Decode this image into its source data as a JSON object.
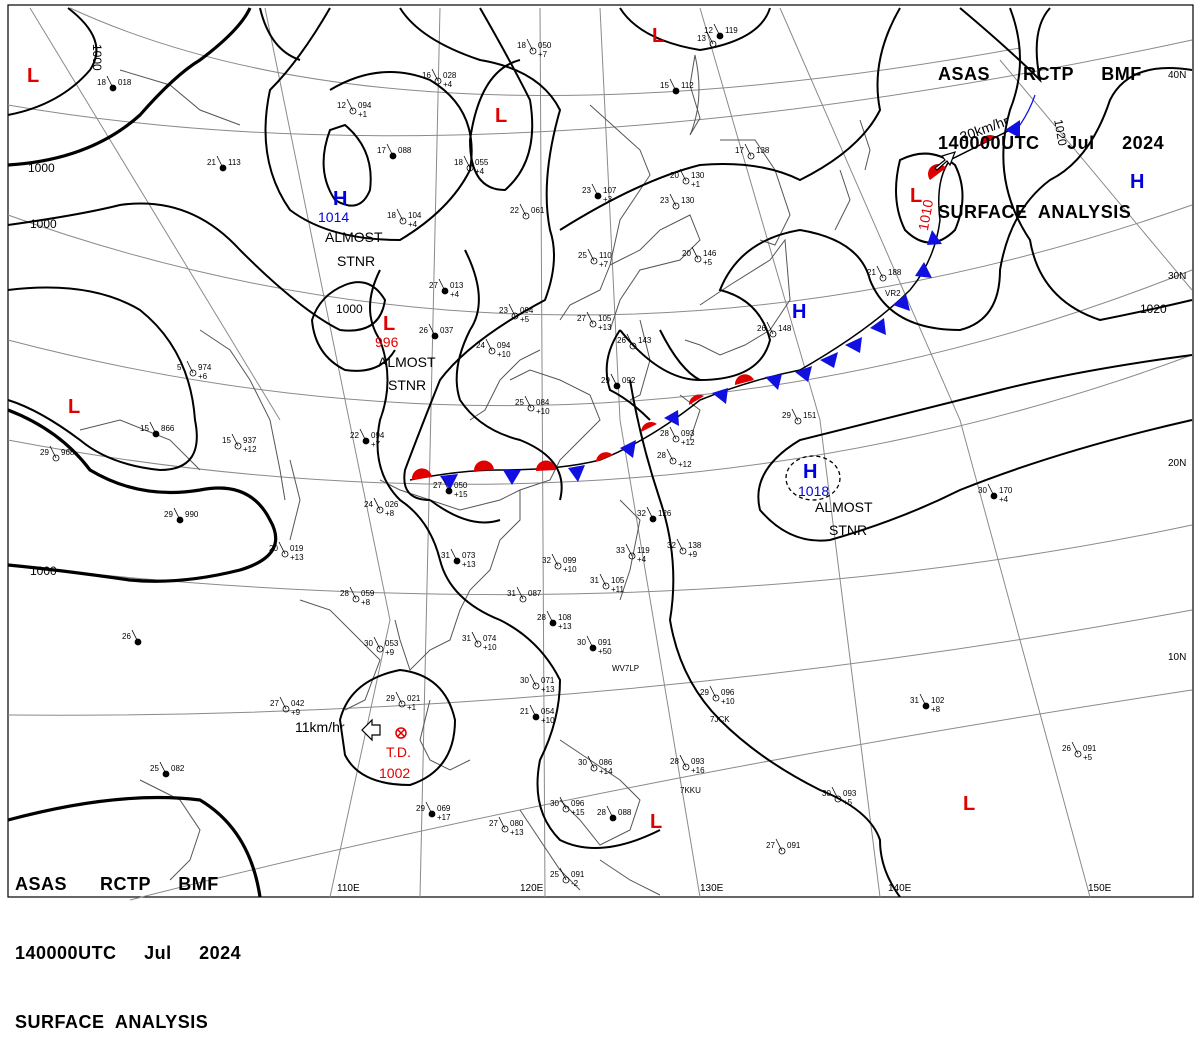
{
  "header": {
    "line1": "ASAS      RCTP     BMF",
    "line2": "140000UTC     Jul     2024",
    "line3": "SURFACE  ANALYSIS"
  },
  "footer": {
    "line1": "ASAS      RCTP     BMF",
    "line2": "140000UTC     Jul     2024",
    "line3": "SURFACE  ANALYSIS"
  },
  "longitude_labels": [
    "110E",
    "120E",
    "130E",
    "140E",
    "150E"
  ],
  "latitude_labels": [
    "40N",
    "30N",
    "20N",
    "10N"
  ],
  "isobar_labels": [
    "1000",
    "1000",
    "1000",
    "1000",
    "1000",
    "1020",
    "1020"
  ],
  "pressure_centers": [
    {
      "type": "L",
      "value": "",
      "color": "#e00000"
    },
    {
      "type": "L",
      "value": "",
      "color": "#e00000"
    },
    {
      "type": "L",
      "value": "",
      "color": "#e00000"
    },
    {
      "type": "L",
      "value": "",
      "color": "#e00000"
    },
    {
      "type": "L",
      "value": "",
      "color": "#e00000"
    },
    {
      "type": "L",
      "value": "996",
      "color": "#e00000"
    },
    {
      "type": "L",
      "value": "1010",
      "color": "#e00000"
    },
    {
      "type": "H",
      "value": "1014",
      "color": "#0000e0"
    },
    {
      "type": "H",
      "value": "",
      "color": "#0000e0"
    },
    {
      "type": "H",
      "value": "",
      "color": "#0000e0"
    },
    {
      "type": "H",
      "value": "1018",
      "color": "#0000e0"
    },
    {
      "type": "L",
      "value": "",
      "color": "#e00000"
    }
  ],
  "tropical_depression": {
    "label": "T.D.",
    "value": "1002",
    "motion": "11km/hr"
  },
  "low_motion": "30km/hr",
  "annotations": [
    "ALMOST\nSTNR",
    "ALMOST\nSTNR",
    "ALMOST\nSTNR"
  ],
  "stations": [
    {
      "t": "18",
      "p": "018",
      "dp": ""
    },
    {
      "t": "16",
      "p": "028",
      "dp": "+4"
    },
    {
      "t": "12",
      "p": "094",
      "dp": "+1"
    },
    {
      "t": "17",
      "p": "088",
      "dp": ""
    },
    {
      "t": "18",
      "p": "055",
      "dp": "+4"
    },
    {
      "t": "18",
      "p": "050",
      "dp": "+7"
    },
    {
      "t": "21",
      "p": "113",
      "dp": ""
    },
    {
      "t": "18",
      "p": "104",
      "dp": "+4"
    },
    {
      "t": "22",
      "p": "061",
      "dp": ""
    },
    {
      "t": "23",
      "p": "107",
      "dp": "+3"
    },
    {
      "t": "23",
      "p": "130",
      "dp": ""
    },
    {
      "t": "20",
      "p": "146",
      "dp": "+5"
    },
    {
      "t": "15",
      "p": "112",
      "dp": ""
    },
    {
      "t": "20",
      "p": "130",
      "dp": "+1"
    },
    {
      "t": "17",
      "p": "138",
      "dp": ""
    },
    {
      "t": "12",
      "p": "119",
      "dp": ""
    },
    {
      "t": "25",
      "p": "110",
      "dp": "+7"
    },
    {
      "t": "21",
      "p": "188",
      "dp": ""
    },
    {
      "t": "27",
      "p": "013",
      "dp": "+4"
    },
    {
      "t": "23",
      "p": "094",
      "dp": "+5"
    },
    {
      "t": "27",
      "p": "105",
      "dp": "+13"
    },
    {
      "t": "26",
      "p": "037",
      "dp": ""
    },
    {
      "t": "24",
      "p": "094",
      "dp": "+10"
    },
    {
      "t": "26",
      "p": "143",
      "dp": ""
    },
    {
      "t": "29",
      "p": "092",
      "dp": ""
    },
    {
      "t": "26",
      "p": "148",
      "dp": ""
    },
    {
      "t": "5",
      "p": "974",
      "dp": "+6"
    },
    {
      "t": "15",
      "p": "866",
      "dp": ""
    },
    {
      "t": "15",
      "p": "937",
      "dp": "+12"
    },
    {
      "t": "29",
      "p": "968",
      "dp": ""
    },
    {
      "t": "22",
      "p": "094",
      "dp": "+7"
    },
    {
      "t": "24",
      "p": "026",
      "dp": "+8"
    },
    {
      "t": "25",
      "p": "084",
      "dp": "+10"
    },
    {
      "t": "27",
      "p": "050",
      "dp": "+15"
    },
    {
      "t": "28",
      "p": "093",
      "dp": "+12"
    },
    {
      "t": "29",
      "p": "151",
      "dp": ""
    },
    {
      "t": "29",
      "p": "990",
      "dp": ""
    },
    {
      "t": "20",
      "p": "019",
      "dp": "+13"
    },
    {
      "t": "28",
      "p": "",
      "dp": "+12"
    },
    {
      "t": "32",
      "p": "126",
      "dp": ""
    },
    {
      "t": "33",
      "p": "119",
      "dp": "+4"
    },
    {
      "t": "32",
      "p": "138",
      "dp": "+9"
    },
    {
      "t": "31",
      "p": "073",
      "dp": "+13"
    },
    {
      "t": "32",
      "p": "099",
      "dp": "+10"
    },
    {
      "t": "31",
      "p": "105",
      "dp": "+11"
    },
    {
      "t": "30",
      "p": "170",
      "dp": "+4"
    },
    {
      "t": "28",
      "p": "059",
      "dp": "+8"
    },
    {
      "t": "31",
      "p": "087",
      "dp": ""
    },
    {
      "t": "28",
      "p": "108",
      "dp": "+13"
    },
    {
      "t": "30",
      "p": "053",
      "dp": "+9"
    },
    {
      "t": "31",
      "p": "074",
      "dp": "+10"
    },
    {
      "t": "30",
      "p": "091",
      "dp": "+50"
    },
    {
      "t": "30",
      "p": "071",
      "dp": "+13"
    },
    {
      "t": "29",
      "p": "096",
      "dp": "+10"
    },
    {
      "t": "31",
      "p": "102",
      "dp": "+8"
    },
    {
      "t": "27",
      "p": "042",
      "dp": "+9"
    },
    {
      "t": "29",
      "p": "021",
      "dp": "+1"
    },
    {
      "t": "21",
      "p": "054",
      "dp": "+10"
    },
    {
      "t": "28",
      "p": "093",
      "dp": "+16"
    },
    {
      "t": "26",
      "p": "091",
      "dp": "+5"
    },
    {
      "t": "25",
      "p": "082",
      "dp": ""
    },
    {
      "t": "30",
      "p": "086",
      "dp": "+14"
    },
    {
      "t": "30",
      "p": "093",
      "dp": "+5"
    },
    {
      "t": "29",
      "p": "069",
      "dp": "+17"
    },
    {
      "t": "27",
      "p": "080",
      "dp": "+13"
    },
    {
      "t": "30",
      "p": "096",
      "dp": "+15"
    },
    {
      "t": "28",
      "p": "088",
      "dp": ""
    },
    {
      "t": "27",
      "p": "091",
      "dp": ""
    },
    {
      "t": "25",
      "p": "091",
      "dp": "-2"
    },
    {
      "t": "26",
      "p": "",
      "dp": ""
    },
    {
      "t": "13",
      "p": "",
      "dp": ""
    }
  ],
  "ship_ids": [
    "WV7LP",
    "7JCK",
    "7KKU",
    "VR2"
  ],
  "colors": {
    "low": "#e00000",
    "high": "#0000e0",
    "isobar": "#000000",
    "grid": "#777777",
    "coast": "#555555"
  }
}
